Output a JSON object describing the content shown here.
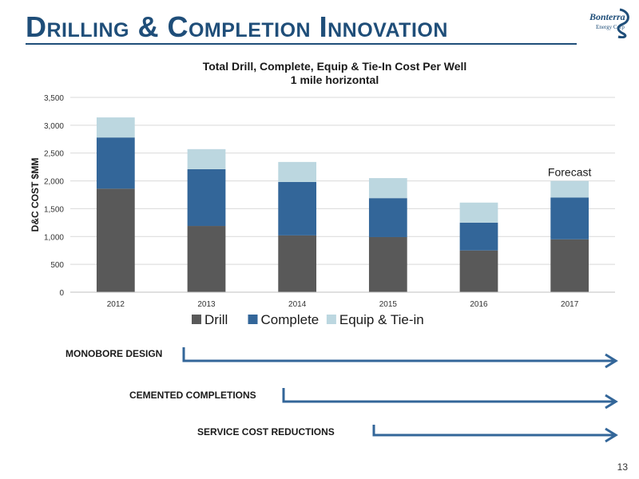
{
  "slide": {
    "title": "Drilling & Completion Innovation",
    "page_number": "13"
  },
  "logo": {
    "name": "Bonterra",
    "subtitle": "Energy Corp"
  },
  "colors": {
    "title": "#1f4e79",
    "drill": "#595959",
    "complete": "#336699",
    "equip": "#bcd7e0",
    "arrow": "#336699"
  },
  "chart_data": {
    "type": "bar",
    "stacked": true,
    "title": "Total Drill, Complete, Equip & Tie-In Cost Per Well",
    "subtitle": "1 mile horizontal",
    "xlabel": "",
    "ylabel": "D&C COST $MM",
    "categories": [
      "2012",
      "2013",
      "2014",
      "2015",
      "2016",
      "2017"
    ],
    "series": [
      {
        "name": "Drill",
        "values": [
          1860,
          1190,
          1020,
          990,
          750,
          950
        ]
      },
      {
        "name": "Complete",
        "values": [
          920,
          1020,
          960,
          700,
          500,
          750
        ]
      },
      {
        "name": "Equip & Tie-in",
        "values": [
          360,
          360,
          360,
          360,
          360,
          300
        ]
      }
    ],
    "ylim": [
      0,
      3500
    ],
    "yticks": [
      0,
      500,
      1000,
      1500,
      2000,
      2500,
      3000,
      3500
    ],
    "ytick_labels": [
      "0",
      "500",
      "1,000",
      "1,500",
      "2,000",
      "2,500",
      "3,000",
      "3,500"
    ],
    "grid": true,
    "legend_position": "bottom",
    "annotations": [
      {
        "category": "2017",
        "text": "Forecast"
      }
    ]
  },
  "initiatives": [
    {
      "label": "MONOBORE DESIGN",
      "starts_at": "2013"
    },
    {
      "label": "CEMENTED COMPLETIONS",
      "starts_at": "2014"
    },
    {
      "label": "SERVICE COST REDUCTIONS",
      "starts_at": "2015"
    }
  ]
}
